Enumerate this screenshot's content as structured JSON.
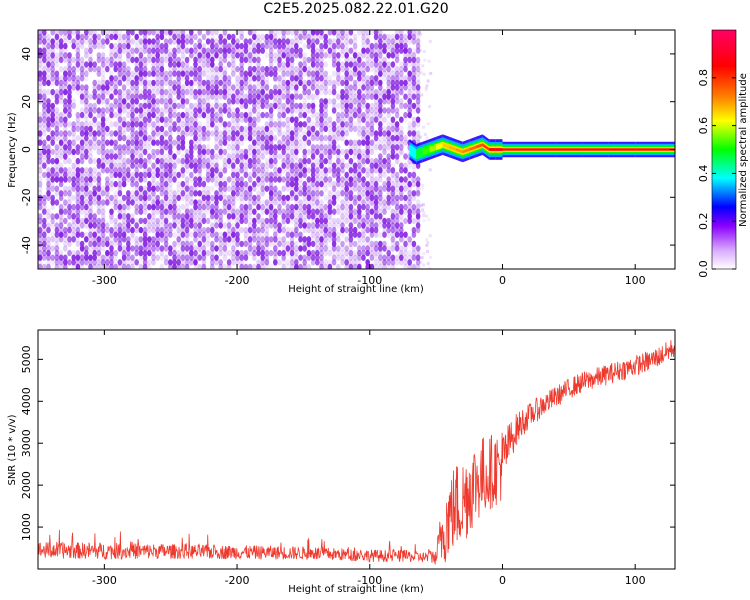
{
  "title": "C2E5.2025.082.22.01.G20",
  "colors": {
    "snr_line": "#ee3a2e",
    "spectrogram_noise": "#8a2be2",
    "signal_center": "#ff2020"
  },
  "chart_data": [
    {
      "type": "heatmap",
      "name": "spectrogram",
      "xlabel": "Height of straight line (km)",
      "ylabel": "Frequency (Hz)",
      "xlim": [
        -350,
        130
      ],
      "ylim": [
        -50,
        50
      ],
      "xticks": [
        -300,
        -200,
        -100,
        0,
        100
      ],
      "yticks": [
        -40,
        -20,
        0,
        20,
        40
      ],
      "colorbar": {
        "label": "Normalized spectral amplitude",
        "range": [
          0,
          1
        ],
        "ticks": [
          "0.0",
          "0.2",
          "0.4",
          "0.6",
          "0.8"
        ],
        "colors": [
          "#ffffff",
          "#8b00ff",
          "#0000ff",
          "#00ffff",
          "#00ff00",
          "#ffff00",
          "#ff8000",
          "#ff0000",
          "#ff0066"
        ]
      },
      "noise_region": {
        "x_range": [
          -350,
          -65
        ],
        "freq_range": [
          -50,
          50
        ],
        "amplitude_range": [
          0.0,
          0.12
        ]
      },
      "signal_track": {
        "x": [
          -70,
          -65,
          -60,
          -55,
          -50,
          -45,
          -40,
          -35,
          -30,
          -25,
          -20,
          -15,
          -10,
          -5,
          0,
          20,
          40,
          60,
          80,
          100,
          130
        ],
        "freq": [
          0,
          -2,
          -1,
          0,
          1,
          2,
          1,
          0,
          -1,
          0,
          1,
          2,
          0,
          0,
          0,
          0,
          0,
          0,
          0,
          0,
          0
        ],
        "amplitude": [
          0.3,
          0.45,
          0.5,
          0.55,
          0.6,
          0.65,
          0.7,
          0.7,
          0.75,
          0.75,
          0.8,
          0.8,
          0.85,
          0.9,
          0.95,
          0.95,
          0.95,
          0.95,
          0.95,
          0.95,
          0.95
        ]
      }
    },
    {
      "type": "line",
      "name": "snr",
      "xlabel": "Height of straight line (km)",
      "ylabel": "SNR (10 * v/v)",
      "xlim": [
        -350,
        130
      ],
      "ylim": [
        0,
        5700
      ],
      "xticks": [
        -300,
        -200,
        -100,
        0,
        100
      ],
      "yticks": [
        1000,
        2000,
        3000,
        4000,
        5000
      ],
      "x": [
        -350,
        -300,
        -250,
        -200,
        -150,
        -100,
        -70,
        -60,
        -50,
        -45,
        -40,
        -35,
        -30,
        -25,
        -20,
        -15,
        -10,
        -5,
        0,
        5,
        10,
        15,
        20,
        30,
        40,
        50,
        60,
        70,
        80,
        90,
        100,
        110,
        120,
        130
      ],
      "values": [
        450,
        430,
        420,
        400,
        380,
        320,
        300,
        280,
        300,
        900,
        1300,
        1500,
        1600,
        1900,
        2100,
        2200,
        2300,
        2400,
        2500,
        3000,
        3300,
        3500,
        3650,
        3900,
        4100,
        4300,
        4450,
        4550,
        4650,
        4750,
        4850,
        4950,
        5100,
        5300
      ],
      "noise_amplitude": [
        200,
        200,
        180,
        170,
        160,
        150,
        140,
        130,
        200,
        900,
        1000,
        1100,
        1100,
        1100,
        1000,
        1000,
        900,
        900,
        900,
        500,
        400,
        350,
        300,
        280,
        260,
        250,
        250,
        250,
        250,
        250,
        250,
        250,
        250,
        250
      ]
    }
  ]
}
